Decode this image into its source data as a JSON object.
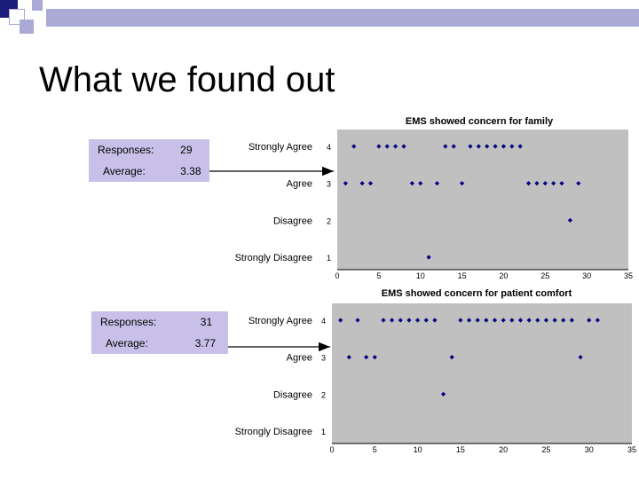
{
  "slide": {
    "title": "What we found out"
  },
  "colors": {
    "plot_bg": "#c0c0c0",
    "marker": "#000080",
    "stat_bg": "#c8c0e8",
    "deco_blue": "#1c1c7c",
    "deco_light": "#aaaad4"
  },
  "stats": [
    {
      "responses_label": "Responses:",
      "responses_value": "29",
      "average_label": "Average:",
      "average_value": "3.38"
    },
    {
      "responses_label": "Responses:",
      "responses_value": "31",
      "average_label": "Average:",
      "average_value": "3.77"
    }
  ],
  "chart_data": [
    {
      "type": "scatter",
      "title": "EMS showed concern for family",
      "category_labels": [
        "Strongly Agree",
        "Agree",
        "Disagree",
        "Strongly Disagree"
      ],
      "xlim": [
        0,
        35
      ],
      "ylim": [
        1,
        4
      ],
      "xticks": [
        "0",
        "5",
        "10",
        "15",
        "20",
        "25",
        "30",
        "35"
      ],
      "yticks": [
        "4",
        "3",
        "2",
        "1"
      ],
      "series": [
        {
          "x": [
            2,
            5,
            6,
            7,
            8,
            13,
            14,
            16,
            17,
            18,
            19,
            20,
            21,
            22
          ],
          "y": [
            4,
            4,
            4,
            4,
            4,
            4,
            4,
            4,
            4,
            4,
            4,
            4,
            4,
            4
          ]
        },
        {
          "x": [
            1,
            3,
            4,
            9,
            10,
            12,
            15,
            23,
            24,
            25,
            26,
            27,
            29
          ],
          "y": [
            3,
            3,
            3,
            3,
            3,
            3,
            3,
            3,
            3,
            3,
            3,
            3,
            3
          ]
        },
        {
          "x": [
            28
          ],
          "y": [
            2
          ]
        },
        {
          "x": [
            11
          ],
          "y": [
            1
          ]
        }
      ]
    },
    {
      "type": "scatter",
      "title": "EMS showed concern for patient comfort",
      "category_labels": [
        "Strongly Agree",
        "Agree",
        "Disagree",
        "Strongly Disagree"
      ],
      "xlim": [
        0,
        35
      ],
      "ylim": [
        1,
        4
      ],
      "xticks": [
        "0",
        "5",
        "10",
        "15",
        "20",
        "25",
        "30",
        "35"
      ],
      "yticks": [
        "4",
        "3",
        "2",
        "1"
      ],
      "series": [
        {
          "x": [
            1,
            3,
            6,
            7,
            8,
            9,
            10,
            11,
            12,
            15,
            16,
            17,
            18,
            19,
            20,
            21,
            22,
            23,
            24,
            25,
            26,
            27,
            28,
            30,
            31
          ],
          "y": [
            4,
            4,
            4,
            4,
            4,
            4,
            4,
            4,
            4,
            4,
            4,
            4,
            4,
            4,
            4,
            4,
            4,
            4,
            4,
            4,
            4,
            4,
            4,
            4,
            4
          ]
        },
        {
          "x": [
            2,
            4,
            5,
            14,
            29
          ],
          "y": [
            3,
            3,
            3,
            3,
            3
          ]
        },
        {
          "x": [
            13
          ],
          "y": [
            2
          ]
        },
        {
          "x": [],
          "y": []
        }
      ]
    }
  ]
}
